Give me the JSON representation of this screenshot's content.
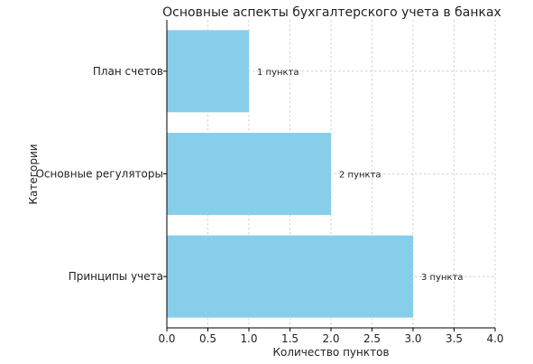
{
  "chart_data": {
    "type": "bar",
    "orientation": "horizontal",
    "title": "Основные аспекты бухгалтерского учета в банках",
    "xlabel": "Количество пунктов",
    "ylabel": "Категории",
    "xlim": [
      0,
      4
    ],
    "xticks": [
      "0.0",
      "0.5",
      "1.0",
      "1.5",
      "2.0",
      "2.5",
      "3.0",
      "3.5",
      "4.0"
    ],
    "categories": [
      "Принципы учета",
      "Основные регуляторы",
      "План счетов"
    ],
    "values": [
      3,
      2,
      1
    ],
    "data_labels": [
      "3 пункта",
      "2 пункта",
      "1 пункта"
    ],
    "bar_color": "#87ceeb",
    "grid": true
  }
}
